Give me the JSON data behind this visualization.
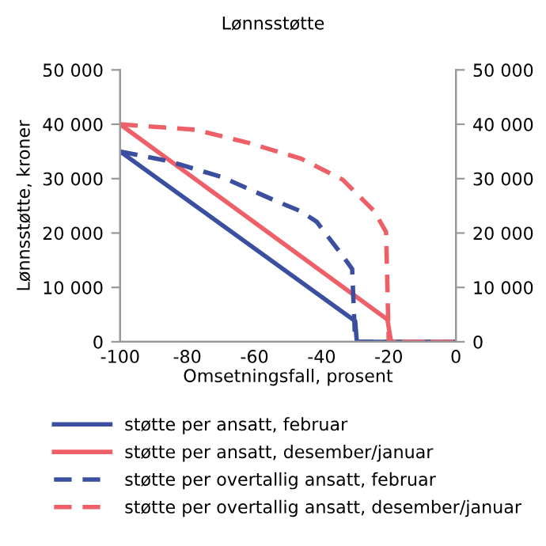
{
  "chart_data": {
    "type": "line",
    "title": "Lønnsstøtte",
    "xlabel": "Omsetningsfall, prosent",
    "ylabel": "Lønnsstøtte, kroner",
    "xlim": [
      -100,
      0
    ],
    "xticks": [
      -100,
      -80,
      -60,
      -40,
      -20,
      0
    ],
    "ylim": [
      0,
      50000
    ],
    "yticks": [
      {
        "value": 0,
        "label": "0"
      },
      {
        "value": 10000,
        "label": "10 000"
      },
      {
        "value": 20000,
        "label": "20 000"
      },
      {
        "value": 30000,
        "label": "30 000"
      },
      {
        "value": 40000,
        "label": "40 000"
      },
      {
        "value": 50000,
        "label": "50 000"
      }
    ],
    "y2lim": [
      0,
      50000
    ],
    "y2ticks": [
      {
        "value": 0,
        "label": "0"
      },
      {
        "value": 10000,
        "label": "10 000"
      },
      {
        "value": 20000,
        "label": "20 000"
      },
      {
        "value": 30000,
        "label": "30 000"
      },
      {
        "value": 40000,
        "label": "40 000"
      },
      {
        "value": 50000,
        "label": "50 000"
      }
    ],
    "grid": false,
    "legend": "bottom",
    "marker": "none",
    "series": [
      {
        "name": "støtte per ansatt, februar",
        "color": "#3a4fa0",
        "line_style": "solid",
        "x": [
          -100,
          -30,
          -29.5,
          0
        ],
        "values": [
          35000,
          3800,
          0,
          0
        ]
      },
      {
        "name": "støtte per ansatt, desember/januar",
        "color": "#ef5f67",
        "line_style": "solid",
        "x": [
          -100,
          -20.4,
          -19.3,
          0
        ],
        "values": [
          40000,
          4100,
          0,
          0
        ]
      },
      {
        "name": "støtte per overtallig ansatt, februar",
        "color": "#3a4fa0",
        "line_style": "dashed",
        "x": [
          -100,
          -85.4,
          -69.7,
          -54,
          -46.2,
          -41.5,
          -33.7,
          -30.9,
          -30,
          0
        ],
        "values": [
          35000,
          33200,
          30300,
          26000,
          24000,
          22100,
          15800,
          13400,
          0,
          0
        ]
      },
      {
        "name": "støtte per overtallig ansatt, desember/januar",
        "color": "#ef5f67",
        "line_style": "dashed",
        "x": [
          -100,
          -77.6,
          -61.9,
          -46.2,
          -33.7,
          -24.3,
          -20.8,
          -20,
          0
        ],
        "values": [
          40000,
          39000,
          36600,
          33700,
          29800,
          24000,
          20200,
          0,
          0
        ]
      }
    ]
  }
}
